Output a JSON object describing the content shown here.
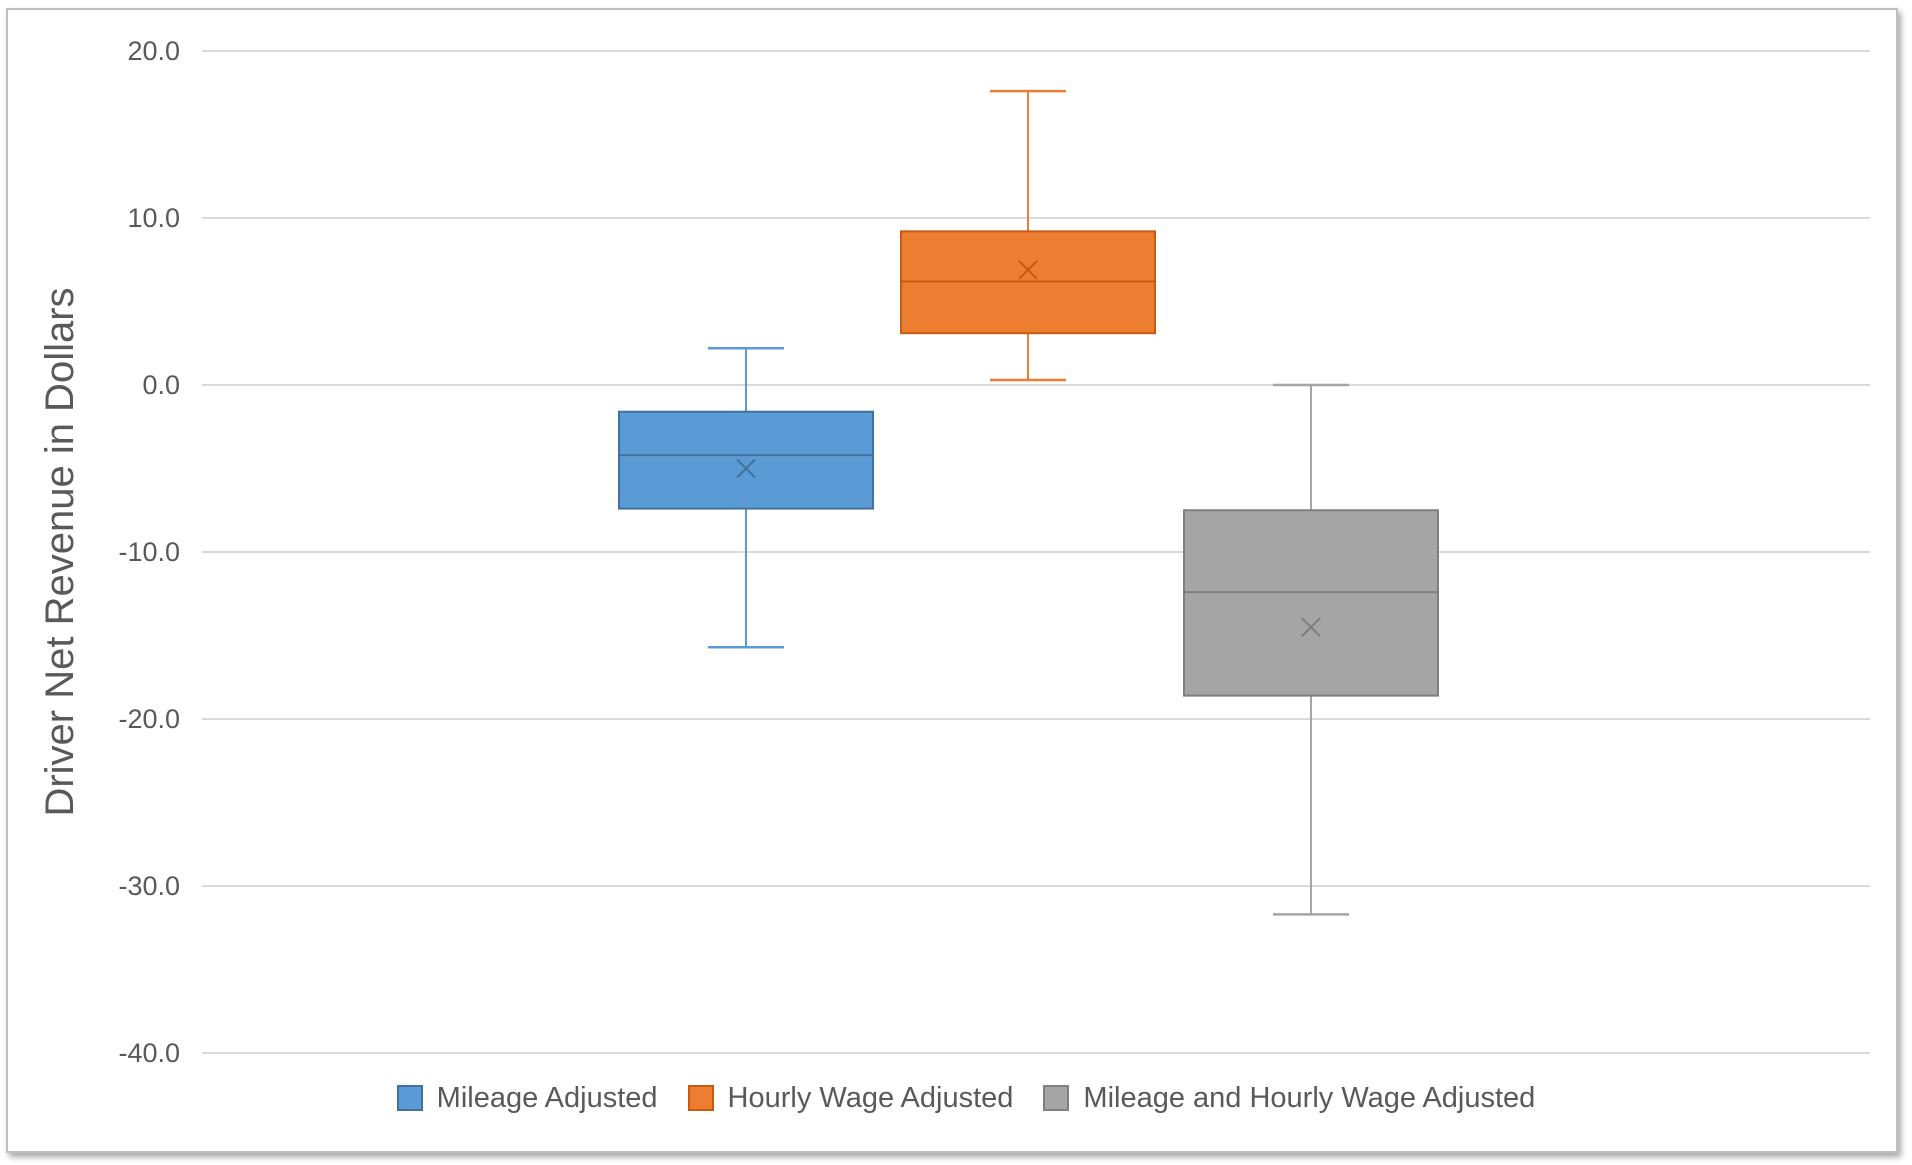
{
  "chart_data": {
    "type": "boxplot",
    "title": "",
    "xlabel": "",
    "ylabel": "Driver Net Revenue in Dollars",
    "ylim": [
      -40,
      20
    ],
    "yticks": [
      20,
      10,
      0,
      -10,
      -20,
      -30,
      -40
    ],
    "ytick_labels": [
      "20.0",
      "10.0",
      "0.0",
      "-10.0",
      "-20.0",
      "-30.0",
      "-40.0"
    ],
    "grid": true,
    "legend_position": "bottom",
    "series": [
      {
        "name": "Mileage Adjusted",
        "color": "#5b9bd5",
        "edge_color": "#41719c",
        "whisker_low": -15.7,
        "q1": -7.4,
        "median": -4.2,
        "q3": -1.6,
        "whisker_high": 2.2,
        "mean": -5.0
      },
      {
        "name": "Hourly Wage Adjusted",
        "color": "#ed7d31",
        "edge_color": "#c55a11",
        "whisker_low": 0.3,
        "q1": 3.1,
        "median": 6.2,
        "q3": 9.2,
        "whisker_high": 17.6,
        "mean": 6.9
      },
      {
        "name": "Mileage and Hourly Wage Adjusted",
        "color": "#a5a5a5",
        "edge_color": "#7f7f7f",
        "whisker_low": -31.7,
        "q1": -18.6,
        "median": -12.4,
        "q3": -7.5,
        "whisker_high": 0.0,
        "mean": -14.5
      }
    ]
  }
}
